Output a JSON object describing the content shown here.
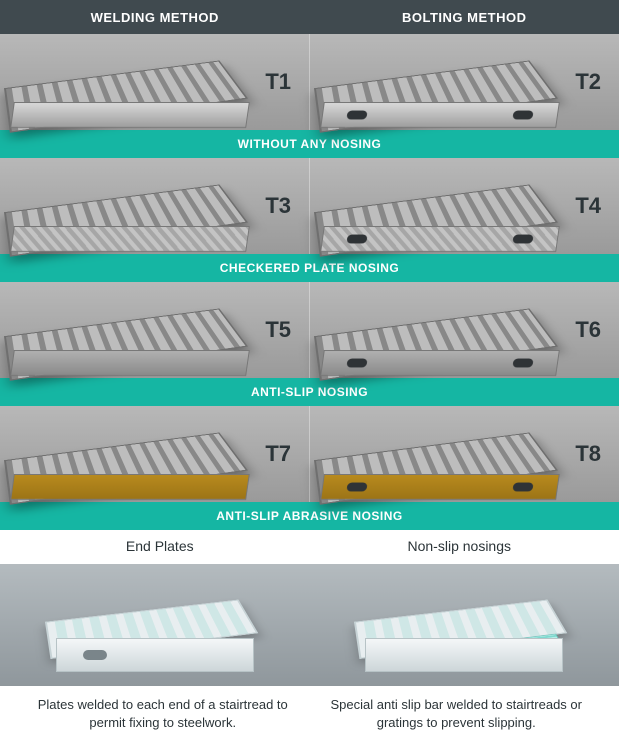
{
  "header": {
    "left": "WELDING METHOD",
    "right": "BOLTING METHOD"
  },
  "rows": [
    {
      "left_code": "T1",
      "right_code": "T2",
      "divider": "WITHOUT ANY NOSING",
      "nose": "plain"
    },
    {
      "left_code": "T3",
      "right_code": "T4",
      "divider": "CHECKERED PLATE NOSING",
      "nose": "checker"
    },
    {
      "left_code": "T5",
      "right_code": "T6",
      "divider": "ANTI-SLIP NOSING",
      "nose": "aslip"
    },
    {
      "left_code": "T7",
      "right_code": "T8",
      "divider": "ANTI-SLIP ABRASIVE NOSING",
      "nose": "abrasive"
    }
  ],
  "captions": {
    "left": "End Plates",
    "right": "Non-slip nosings"
  },
  "descriptions": {
    "left": "Plates welded to each end of a stairtread to permit fixing to steelwork.",
    "right": "Special anti slip bar welded to stairtreads or gratings to prevent slipping."
  },
  "colors": {
    "header_bg": "#404a4f",
    "divider_bg": "#15b6a3",
    "code_text": "#2b3438",
    "abrasive": "#b88a1e"
  }
}
